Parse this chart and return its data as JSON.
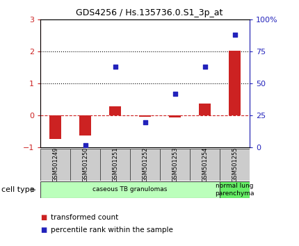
{
  "title": "GDS4256 / Hs.135736.0.S1_3p_at",
  "samples": [
    "GSM501249",
    "GSM501250",
    "GSM501251",
    "GSM501252",
    "GSM501253",
    "GSM501254",
    "GSM501255"
  ],
  "transformed_count": [
    -0.72,
    -0.62,
    0.3,
    -0.04,
    -0.05,
    0.38,
    2.02
  ],
  "percentile_rank_pct": [
    null,
    2,
    63,
    20,
    42,
    63,
    88
  ],
  "left_ylim": [
    -1,
    3
  ],
  "left_yticks": [
    -1,
    0,
    1,
    2,
    3
  ],
  "right_ylim": [
    0,
    100
  ],
  "right_yticks": [
    0,
    25,
    50,
    75,
    100
  ],
  "right_yticklabels": [
    "0",
    "25",
    "50",
    "75",
    "100%"
  ],
  "bar_color": "#cc2222",
  "dot_color": "#2222bb",
  "hline_color": "#cc2222",
  "cell_type_groups": [
    {
      "label": "caseous TB granulomas",
      "start": 0,
      "end": 5,
      "color": "#bbffbb"
    },
    {
      "label": "normal lung\nparenchyma",
      "start": 6,
      "end": 6,
      "color": "#66ee66"
    }
  ],
  "legend_items": [
    {
      "color": "#cc2222",
      "label": "transformed count"
    },
    {
      "color": "#2222bb",
      "label": "percentile rank within the sample"
    }
  ],
  "cell_type_label": "cell type",
  "background_color": "#ffffff",
  "tick_label_color_left": "#cc2222",
  "tick_label_color_right": "#2222bb",
  "sample_box_color": "#cccccc",
  "sample_box_edge": "#444444"
}
